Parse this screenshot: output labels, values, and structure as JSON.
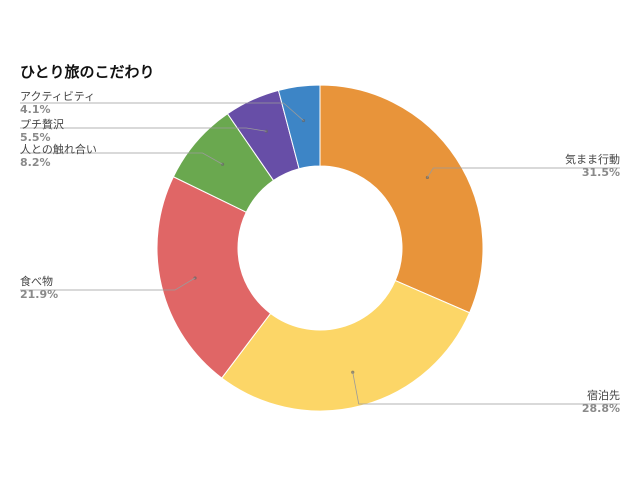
{
  "chart_data": {
    "type": "pie",
    "title": "ひとり旅のこだわり",
    "donut": true,
    "start_angle_deg": 0,
    "direction": "clockwise",
    "slices": [
      {
        "label": "気まま行動",
        "value": 31.5,
        "display": "31.5%",
        "color": "#E8943A",
        "label_side": "right"
      },
      {
        "label": "宿泊先",
        "value": 28.8,
        "display": "28.8%",
        "color": "#FCD667",
        "label_side": "right"
      },
      {
        "label": "食べ物",
        "value": 21.9,
        "display": "21.9%",
        "color": "#E06666",
        "label_side": "left"
      },
      {
        "label": "人との触れ合い",
        "value": 8.2,
        "display": "8.2%",
        "color": "#6AA84F",
        "label_side": "left"
      },
      {
        "label": "プチ贅沢",
        "value": 5.5,
        "display": "5.5%",
        "color": "#674EA7",
        "label_side": "left"
      },
      {
        "label": "アクティビティ",
        "value": 4.1,
        "display": "4.1%",
        "color": "#3D85C6",
        "label_side": "left"
      }
    ]
  }
}
